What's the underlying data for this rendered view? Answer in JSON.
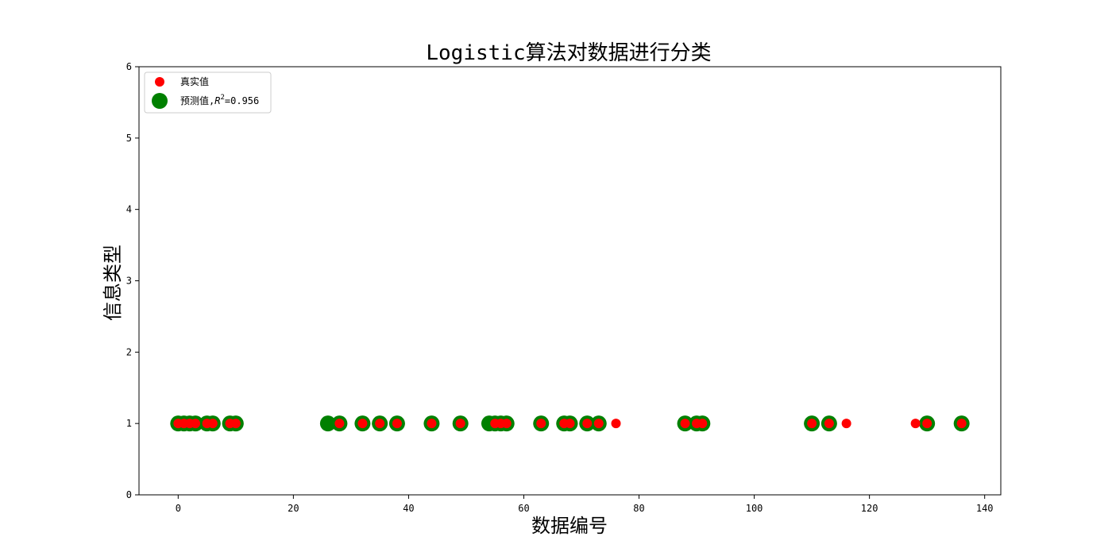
{
  "chart_data": {
    "type": "scatter",
    "title": "Logistic算法对数据进行分类",
    "xlabel": "数据编号",
    "ylabel": "信息类型",
    "xlim": [
      -6.8,
      142.8
    ],
    "ylim": [
      0,
      6
    ],
    "xticks": [
      0,
      20,
      40,
      60,
      80,
      100,
      120,
      140
    ],
    "yticks": [
      0,
      1,
      2,
      3,
      4,
      5,
      6
    ],
    "grid": false,
    "legend_position": "upper-left",
    "series": [
      {
        "name": "真实值",
        "color": "#ff0000",
        "marker": "small-circle",
        "x": [
          0,
          1,
          2,
          3,
          5,
          6,
          9,
          10,
          28,
          32,
          35,
          38,
          44,
          49,
          55,
          56,
          57,
          63,
          67,
          68,
          71,
          73,
          76,
          88,
          90,
          91,
          110,
          113,
          116,
          128,
          130,
          136
        ],
        "y": [
          1,
          1,
          1,
          1,
          1,
          1,
          1,
          1,
          1,
          1,
          1,
          1,
          1,
          1,
          1,
          1,
          1,
          1,
          1,
          1,
          1,
          1,
          1,
          1,
          1,
          1,
          1,
          1,
          1,
          1,
          1,
          1
        ]
      },
      {
        "name_prefix": "预测值,",
        "name_r2": "R",
        "name_sup": "2",
        "name_value": "=0.956",
        "color": "#008000",
        "marker": "large-circle",
        "x": [
          0,
          1,
          2,
          3,
          5,
          6,
          9,
          10,
          26,
          28,
          32,
          35,
          38,
          44,
          49,
          54,
          55,
          56,
          57,
          63,
          67,
          68,
          71,
          73,
          88,
          90,
          91,
          110,
          113,
          130,
          136
        ],
        "y": [
          1,
          1,
          1,
          1,
          1,
          1,
          1,
          1,
          1,
          1,
          1,
          1,
          1,
          1,
          1,
          1,
          1,
          1,
          1,
          1,
          1,
          1,
          1,
          1,
          1,
          1,
          1,
          1,
          1,
          1,
          1
        ]
      }
    ]
  }
}
